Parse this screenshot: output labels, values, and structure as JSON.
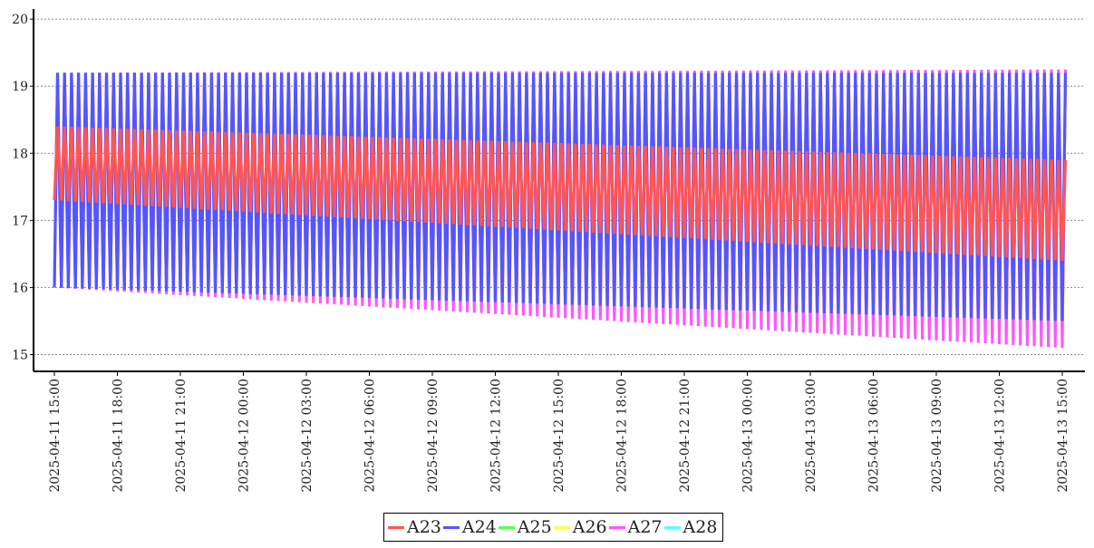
{
  "chart_data": {
    "type": "line",
    "title": "",
    "xlabel": "",
    "ylabel": "",
    "ylim": [
      14.75,
      20.15
    ],
    "yticks": [
      15,
      16,
      17,
      18,
      19,
      20
    ],
    "ytick_labels": [
      "15",
      "16",
      "17",
      "18",
      "19",
      "20"
    ],
    "grid": "horizontal-dashed",
    "legend_position": "bottom-center",
    "x_tick_labels": [
      "2025-04-11  15:00",
      "2025-04-11  18:00",
      "2025-04-11  21:00",
      "2025-04-12  00:00",
      "2025-04-12  03:00",
      "2025-04-12  06:00",
      "2025-04-12  09:00",
      "2025-04-12  12:00",
      "2025-04-12  15:00",
      "2025-04-12  18:00",
      "2025-04-12  21:00",
      "2025-04-13  00:00",
      "2025-04-13  03:00",
      "2025-04-13  06:00",
      "2025-04-13  09:00",
      "2025-04-13  12:00",
      "2025-04-13  15:00"
    ],
    "x_range_hours": [
      0,
      48
    ],
    "series": [
      {
        "name": "A23",
        "color": "#ff5555",
        "cycle_period_min": 20,
        "min_start": 17.3,
        "min_end": 16.4,
        "max_start": 18.4,
        "max_end": 17.9
      },
      {
        "name": "A24",
        "color": "#5555ff",
        "cycle_period_min": 20,
        "min_start": 16.0,
        "min_end": 15.5,
        "max_start": 19.2,
        "max_end": 19.2
      },
      {
        "name": "A25",
        "color": "#55ff55",
        "cycle_period_min": 20,
        "min_start": 16.0,
        "min_end": 15.5,
        "max_start": 19.2,
        "max_end": 19.2
      },
      {
        "name": "A26",
        "color": "#ffff55",
        "cycle_period_min": 20,
        "min_start": 16.0,
        "min_end": 15.5,
        "max_start": 19.2,
        "max_end": 19.2
      },
      {
        "name": "A27",
        "color": "#ff55ff",
        "cycle_period_min": 20,
        "min_start": 16.0,
        "min_end": 15.1,
        "max_start": 19.2,
        "max_end": 19.25
      },
      {
        "name": "A28",
        "color": "#55ffff",
        "cycle_period_min": 20,
        "min_start": 16.0,
        "min_end": 15.3,
        "max_start": 19.2,
        "max_end": 19.2
      }
    ]
  }
}
